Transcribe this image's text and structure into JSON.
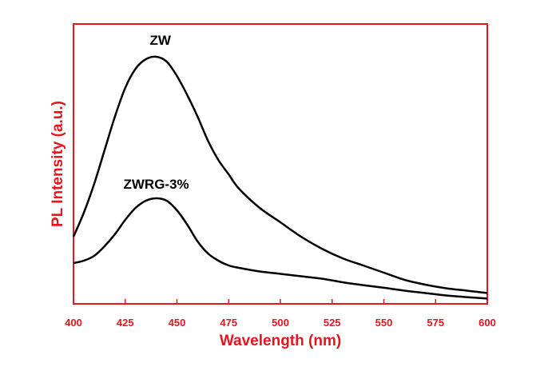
{
  "chart_data": {
    "type": "line",
    "xlabel": "Wavelength (nm)",
    "ylabel": "PL Intensity (a.u.)",
    "xlim": [
      400,
      600
    ],
    "ylim": [
      0,
      1
    ],
    "grid": false,
    "y_tick_labels_shown": false,
    "x_ticks": [
      400,
      425,
      450,
      475,
      500,
      525,
      550,
      575,
      600
    ],
    "colors": {
      "frame": "#e8141e",
      "axis_text": "#e8141e",
      "series_line": "#000000",
      "annotation_text": "#000000"
    },
    "annotations": [
      {
        "text": "ZW",
        "anchor_x": 442,
        "anchor_y": 1.06
      },
      {
        "text": "ZWRG-3%",
        "anchor_x": 440,
        "anchor_y": 0.46
      }
    ],
    "series": [
      {
        "x": [
          400,
          405,
          410,
          415,
          420,
          425,
          430,
          435,
          440,
          445,
          450,
          455,
          460,
          465,
          470,
          475,
          480,
          490,
          500,
          510,
          520,
          530,
          540,
          550,
          560,
          570,
          580,
          590,
          600
        ],
        "values": [
          0.26,
          0.36,
          0.48,
          0.62,
          0.76,
          0.88,
          0.96,
          1.0,
          1.01,
          0.99,
          0.93,
          0.85,
          0.76,
          0.66,
          0.58,
          0.52,
          0.46,
          0.38,
          0.32,
          0.26,
          0.21,
          0.17,
          0.14,
          0.11,
          0.08,
          0.06,
          0.045,
          0.035,
          0.025
        ]
      },
      {
        "x": [
          400,
          405,
          410,
          415,
          420,
          425,
          430,
          435,
          440,
          445,
          450,
          455,
          460,
          465,
          470,
          475,
          480,
          490,
          500,
          510,
          520,
          530,
          540,
          550,
          560,
          570,
          580,
          590,
          600
        ],
        "values": [
          0.15,
          0.16,
          0.18,
          0.22,
          0.27,
          0.33,
          0.38,
          0.41,
          0.42,
          0.41,
          0.37,
          0.31,
          0.24,
          0.19,
          0.16,
          0.14,
          0.13,
          0.115,
          0.105,
          0.095,
          0.085,
          0.07,
          0.058,
          0.047,
          0.035,
          0.025,
          0.015,
          0.008,
          0.002
        ]
      }
    ]
  }
}
